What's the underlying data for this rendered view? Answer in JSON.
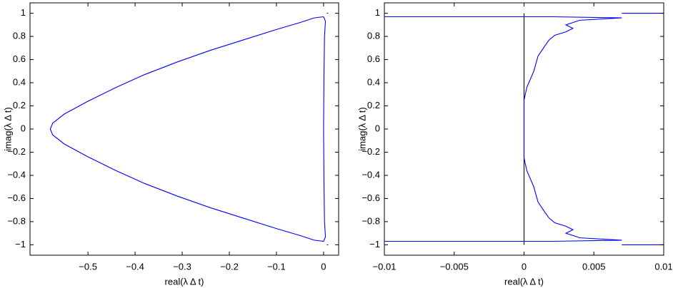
{
  "chart_data": [
    {
      "type": "line",
      "xlabel": "real(λ Δ t)",
      "ylabel": "imag(λ Δ t)",
      "xlim": [
        -0.623,
        0.032
      ],
      "ylim": [
        -1.09,
        1.09
      ],
      "xticks": [
        {
          "value": -0.5,
          "label": "−0.5"
        },
        {
          "value": -0.4,
          "label": "−0.4"
        },
        {
          "value": -0.3,
          "label": "−0.3"
        },
        {
          "value": -0.2,
          "label": "−0.2"
        },
        {
          "value": -0.1,
          "label": "−0.1"
        },
        0
      ],
      "yticks": [
        {
          "value": -1,
          "label": "−1"
        },
        {
          "value": -0.8,
          "label": "−0.8"
        },
        {
          "value": -0.6,
          "label": "−0.6"
        },
        {
          "value": -0.4,
          "label": "−0.4"
        },
        {
          "value": -0.2,
          "label": "−0.2"
        },
        0,
        0.2,
        0.4,
        0.6,
        0.8,
        1
      ],
      "series": [
        {
          "color": "#0000ff",
          "x": [
            0,
            -0.02,
            -0.05,
            -0.1,
            -0.17,
            -0.24,
            -0.31,
            -0.38,
            -0.44,
            -0.5,
            -0.55,
            -0.575,
            -0.58,
            -0.575,
            -0.55,
            -0.5,
            -0.44,
            -0.38,
            -0.31,
            -0.24,
            -0.17,
            -0.1,
            -0.05,
            -0.02,
            0,
            0.004,
            0.002,
            0.001,
            0,
            0.001,
            0.002,
            0.004,
            0
          ],
          "values": [
            0.97,
            0.96,
            0.92,
            0.86,
            0.77,
            0.68,
            0.58,
            0.47,
            0.36,
            0.24,
            0.13,
            0.05,
            0,
            -0.05,
            -0.13,
            -0.24,
            -0.36,
            -0.47,
            -0.58,
            -0.68,
            -0.77,
            -0.86,
            -0.92,
            -0.96,
            -0.97,
            -0.93,
            -0.8,
            -0.5,
            0,
            0.5,
            0.8,
            0.93,
            0.97
          ]
        },
        {
          "color": "#0000ff",
          "x": [
            0.007,
            0.01,
            null,
            0.007,
            0.01
          ],
          "values": [
            1,
            1,
            null,
            -1,
            -1
          ]
        }
      ]
    },
    {
      "type": "line",
      "xlabel": "real(λ Δ t)",
      "ylabel": "imag(λ Δ t)",
      "xlim": [
        -0.01,
        0.01
      ],
      "ylim": [
        -1.09,
        1.09
      ],
      "xticks": [
        {
          "value": -0.01,
          "label": "−0.01"
        },
        {
          "value": -0.005,
          "label": "−0.005"
        },
        0,
        0.005,
        0.01
      ],
      "yticks": [
        {
          "value": -1,
          "label": "−1"
        },
        {
          "value": -0.8,
          "label": "−0.8"
        },
        {
          "value": -0.6,
          "label": "−0.6"
        },
        {
          "value": -0.4,
          "label": "−0.4"
        },
        {
          "value": -0.2,
          "label": "−0.2"
        },
        0,
        0.2,
        0.4,
        0.6,
        0.8,
        1
      ],
      "series": [
        {
          "color": "#000000",
          "x": [
            0,
            0
          ],
          "values": [
            1,
            -1
          ]
        },
        {
          "color": "#0000ff",
          "x": [
            -0.01,
            0.002,
            0.007,
            0.004,
            0.0035,
            0.003,
            0.0035,
            0.003,
            0.0022,
            0.0018,
            0.0015,
            0.001,
            0.0007,
            0.0002,
            0,
            0,
            0.0002,
            0.0007,
            0.001,
            0.0015,
            0.0018,
            0.0022,
            0.003,
            0.0035,
            0.003,
            0.0035,
            0.004,
            0.007,
            0.002,
            -0.01
          ],
          "values": [
            0.97,
            0.97,
            0.96,
            0.94,
            0.92,
            0.9,
            0.87,
            0.84,
            0.81,
            0.77,
            0.72,
            0.63,
            0.5,
            0.36,
            0.25,
            -0.25,
            -0.36,
            -0.5,
            -0.63,
            -0.72,
            -0.77,
            -0.81,
            -0.84,
            -0.87,
            -0.9,
            -0.92,
            -0.94,
            -0.96,
            -0.97,
            -0.97
          ]
        },
        {
          "color": "#0000ff",
          "x": [
            0.007,
            0.01,
            null,
            0.007,
            0.01
          ],
          "values": [
            1,
            1,
            null,
            -1,
            -1
          ]
        }
      ]
    }
  ]
}
